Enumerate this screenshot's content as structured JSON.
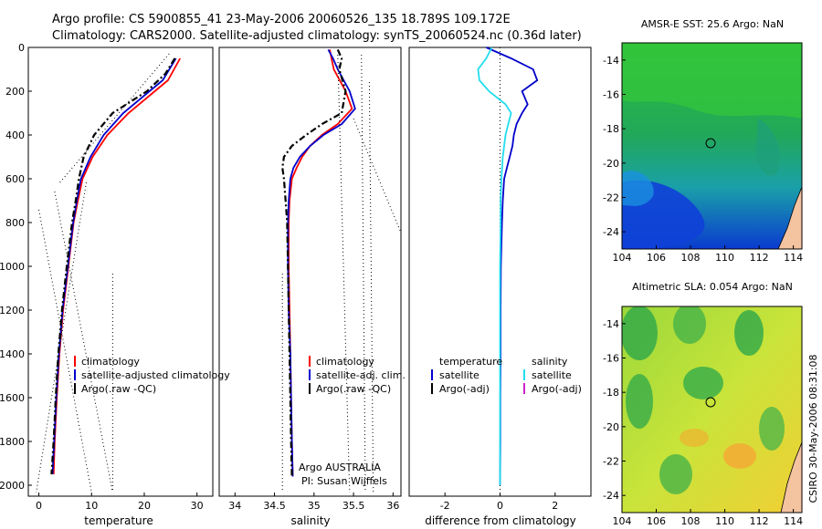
{
  "header": {
    "line1": "Argo profile: CS 5900855_41 23-May-2006 20060526_135 18.789S 109.172E",
    "line2": "Climatology: CARS2000. Satellite-adjusted climatology: synTS_20060524.nc (0.36d later)"
  },
  "side_label": "CSIRO 30-May-2006 08:31:08",
  "colors": {
    "climatology": "#ff0000",
    "satellite": "#0000cc",
    "satellite_salinity": "#22ddee",
    "argo": "#000000",
    "argo_adj_salinity": "#cc22cc"
  },
  "chart_data": [
    {
      "type": "line",
      "panel": "temperature",
      "xlabel": "temperature",
      "xlim": [
        -2,
        33
      ],
      "xticks": [
        "0",
        "10",
        "20",
        "30"
      ],
      "ylim": [
        0,
        2050
      ],
      "yticks": [
        "0",
        "200",
        "400",
        "600",
        "800",
        "1000",
        "1200",
        "1400",
        "1600",
        "1800",
        "2000"
      ],
      "legend": [
        "climatology",
        "satellite-adjusted climatology",
        "Argo(.raw -QC)"
      ],
      "series": [
        {
          "name": "climatology",
          "y": [
            50,
            150,
            200,
            300,
            400,
            500,
            600,
            700,
            800,
            1000,
            1200,
            1400,
            1600,
            1800,
            1950
          ],
          "x": [
            26.8,
            24.5,
            22,
            17,
            13,
            10.2,
            8.3,
            7.4,
            6.6,
            5.6,
            4.6,
            3.9,
            3.4,
            3,
            2.8
          ]
        },
        {
          "name": "satellite-adjusted climatology",
          "y": [
            50,
            150,
            200,
            300,
            400,
            500,
            600,
            700,
            800,
            1000,
            1200,
            1400,
            1600,
            1800,
            1950
          ],
          "x": [
            26,
            23.5,
            21,
            16,
            12.3,
            9.8,
            8,
            7.2,
            6.5,
            5.5,
            4.5,
            3.8,
            3.3,
            2.9,
            2.6
          ]
        },
        {
          "name": "Argo(.raw -QC)",
          "y": [
            50,
            120,
            200,
            300,
            400,
            500,
            600,
            700,
            800,
            1000,
            1200,
            1400,
            1600,
            1800,
            1950
          ],
          "x": [
            25.8,
            24,
            20.5,
            14,
            10.5,
            8.5,
            7.6,
            7,
            6.3,
            5.3,
            4.4,
            3.7,
            3.2,
            2.8,
            2.4
          ]
        }
      ]
    },
    {
      "type": "line",
      "panel": "salinity",
      "xlabel": "salinity",
      "xlim": [
        33.8,
        36.1
      ],
      "xticks": [
        "34",
        "34.5",
        "35",
        "35.5",
        "36"
      ],
      "ylim": [
        0,
        2050
      ],
      "legend": [
        "climatology",
        "satellite-adj. clim.",
        "Argo(.raw -QC)"
      ],
      "annotation": [
        "Argo AUSTRALIA",
        "PI: Susan Wijffels"
      ],
      "series": [
        {
          "name": "climatology",
          "y": [
            10,
            50,
            100,
            200,
            280,
            350,
            400,
            450,
            500,
            550,
            600,
            700,
            800,
            1000,
            1200,
            1400,
            1600,
            1800,
            1960
          ],
          "x": [
            35.2,
            35.22,
            35.25,
            35.4,
            35.48,
            35.3,
            35.1,
            34.95,
            34.85,
            34.78,
            34.72,
            34.69,
            34.68,
            34.68,
            34.69,
            34.7,
            34.71,
            34.72,
            34.73
          ]
        },
        {
          "name": "satellite-adj. clim.",
          "y": [
            10,
            50,
            100,
            200,
            280,
            350,
            400,
            450,
            500,
            550,
            600,
            700,
            800,
            1000,
            1200,
            1400,
            1600,
            1800,
            1960
          ],
          "x": [
            35.18,
            35.24,
            35.3,
            35.45,
            35.52,
            35.35,
            35.12,
            34.95,
            34.82,
            34.74,
            34.7,
            34.68,
            34.67,
            34.67,
            34.68,
            34.7,
            34.71,
            34.72,
            34.73
          ]
        },
        {
          "name": "Argo(.raw -QC)",
          "y": [
            10,
            50,
            100,
            200,
            300,
            350,
            400,
            450,
            500,
            550,
            600,
            700,
            800,
            1000,
            1200,
            1400,
            1600,
            1800,
            1960
          ],
          "x": [
            35.3,
            35.35,
            35.32,
            35.4,
            35.35,
            35.1,
            34.9,
            34.72,
            34.62,
            34.6,
            34.62,
            34.64,
            34.66,
            34.67,
            34.68,
            34.69,
            34.7,
            34.71,
            34.72
          ]
        }
      ]
    },
    {
      "type": "line",
      "panel": "difference",
      "xlabel": "difference from climatology",
      "xlim": [
        -3.3,
        3.3
      ],
      "xticks": [
        "-2",
        "0",
        "2"
      ],
      "ylim": [
        0,
        2050
      ],
      "legend": {
        "temperature_heading": "temperature",
        "salinity_heading": "salinity",
        "items": [
          "satellite",
          "Argo(-adj)"
        ]
      },
      "series": [
        {
          "name": "temperature satellite",
          "y": [
            0,
            50,
            100,
            150,
            200,
            260,
            300,
            350,
            400,
            450,
            500,
            550,
            600,
            700,
            800,
            900,
            1000,
            1200,
            1400,
            1600,
            1800,
            2000
          ],
          "x": [
            -0.5,
            0.4,
            1.2,
            1.35,
            0.8,
            1.0,
            0.8,
            0.6,
            0.5,
            0.45,
            0.35,
            0.25,
            0.15,
            0.1,
            0.07,
            0.05,
            0.03,
            0.02,
            0.02,
            0.01,
            0.01,
            0
          ]
        },
        {
          "name": "salinity satellite",
          "y": [
            0,
            50,
            100,
            150,
            200,
            260,
            300,
            350,
            400,
            450,
            500,
            600,
            700,
            800,
            1000,
            1200,
            1400,
            1600,
            1800,
            2000
          ],
          "x": [
            -0.3,
            -0.5,
            -0.8,
            -0.75,
            -0.4,
            0.2,
            0.4,
            0.3,
            0.2,
            0.15,
            0.1,
            0.05,
            0.02,
            0.02,
            0,
            0,
            0,
            0,
            0,
            0
          ]
        }
      ]
    },
    {
      "type": "heatmap",
      "panel": "sst_map",
      "title": "AMSR-E SST: 25.6 Argo: NaN",
      "xlim": [
        104,
        114.5
      ],
      "ylim": [
        -25,
        -13
      ],
      "xticks": [
        "104",
        "106",
        "108",
        "110",
        "112",
        "114"
      ],
      "yticks": [
        "-14",
        "-16",
        "-18",
        "-20",
        "-22",
        "-24"
      ],
      "marker": {
        "lon": 109.172,
        "lat": -18.789
      }
    },
    {
      "type": "heatmap",
      "panel": "sla_map",
      "title": "Altimetric SLA: 0.054 Argo: NaN",
      "xlim": [
        104,
        114.5
      ],
      "ylim": [
        -25,
        -13
      ],
      "xticks": [
        "104",
        "106",
        "108",
        "110",
        "112",
        "114"
      ],
      "yticks": [
        "-14",
        "-16",
        "-18",
        "-20",
        "-22",
        "-24"
      ],
      "marker": {
        "lon": 109.172,
        "lat": -18.789
      }
    }
  ]
}
